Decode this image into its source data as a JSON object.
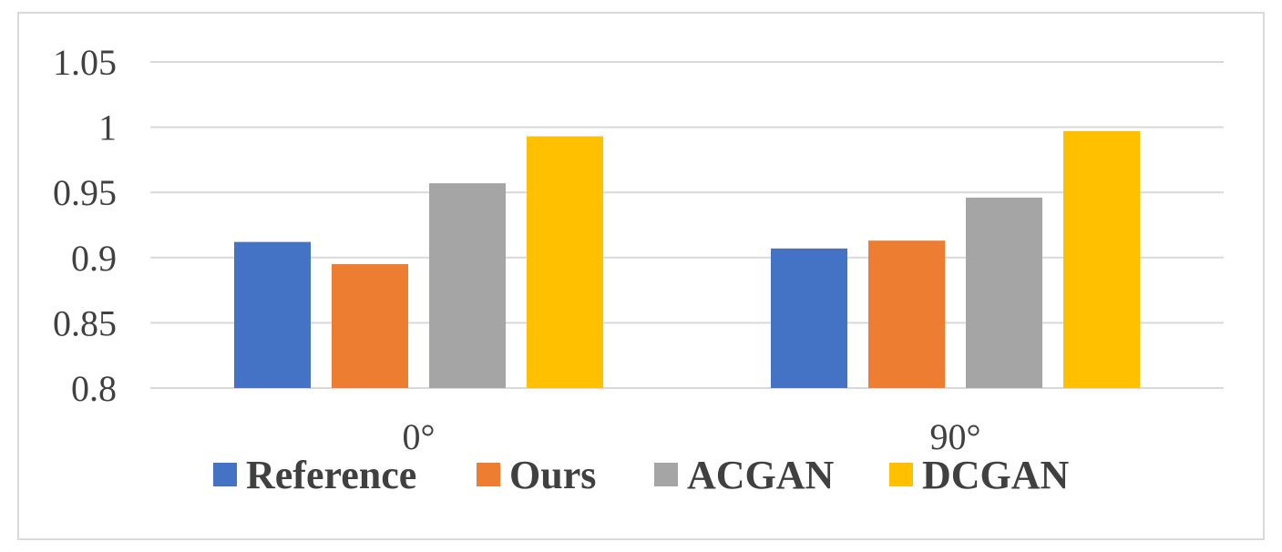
{
  "chart_data": {
    "type": "bar",
    "categories": [
      "0°",
      "90°"
    ],
    "series": [
      {
        "name": "Reference",
        "values": [
          0.912,
          0.907
        ],
        "color": "#4472C4"
      },
      {
        "name": "Ours",
        "values": [
          0.895,
          0.913
        ],
        "color": "#ED7D31"
      },
      {
        "name": "ACGAN",
        "values": [
          0.957,
          0.946
        ],
        "color": "#A5A5A5"
      },
      {
        "name": "DCGAN",
        "values": [
          0.993,
          0.997
        ],
        "color": "#FFC000"
      }
    ],
    "title": "",
    "xlabel": "",
    "ylabel": "",
    "ylim": [
      0.8,
      1.05
    ],
    "yticks": [
      "0.8",
      "0.85",
      "0.9",
      "0.95",
      "1",
      "1.05"
    ],
    "ytick_values": [
      0.8,
      0.85,
      0.9,
      0.95,
      1.0,
      1.05
    ],
    "grid": true,
    "legend_position": "bottom",
    "gridline_color": "#D9D9D9",
    "frame_color": "#D9D9D9"
  }
}
